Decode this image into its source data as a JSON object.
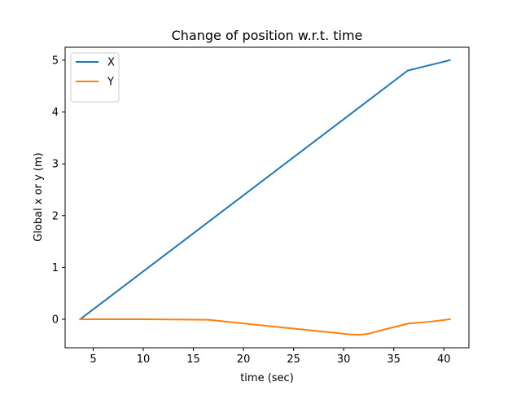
{
  "chart_data": {
    "type": "line",
    "title": "Change of position w.r.t. time",
    "xlabel": "time (sec)",
    "ylabel": "Global x or y (m)",
    "xlim": [
      2.2,
      42.5
    ],
    "ylim": [
      -0.55,
      5.25
    ],
    "xticks": [
      5,
      10,
      15,
      20,
      25,
      30,
      35,
      40
    ],
    "yticks": [
      0,
      1,
      2,
      3,
      4,
      5
    ],
    "xtick_labels": [
      "5",
      "10",
      "15",
      "20",
      "25",
      "30",
      "35",
      "40"
    ],
    "ytick_labels": [
      "0",
      "1",
      "2",
      "3",
      "4",
      "5"
    ],
    "grid": false,
    "legend_position": "top-left",
    "series": [
      {
        "name": "X",
        "color": "#1f77b4",
        "x": [
          3.7,
          36.4,
          40.6
        ],
        "y": [
          0.0,
          4.8,
          5.0
        ]
      },
      {
        "name": "Y",
        "color": "#ff7f0e",
        "x": [
          3.7,
          10.0,
          16.5,
          20.0,
          25.0,
          29.0,
          30.5,
          31.5,
          32.5,
          34.0,
          36.5,
          38.5,
          40.6
        ],
        "y": [
          0.0,
          0.0,
          -0.01,
          -0.08,
          -0.18,
          -0.26,
          -0.29,
          -0.3,
          -0.28,
          -0.2,
          -0.08,
          -0.05,
          0.0
        ]
      }
    ]
  }
}
